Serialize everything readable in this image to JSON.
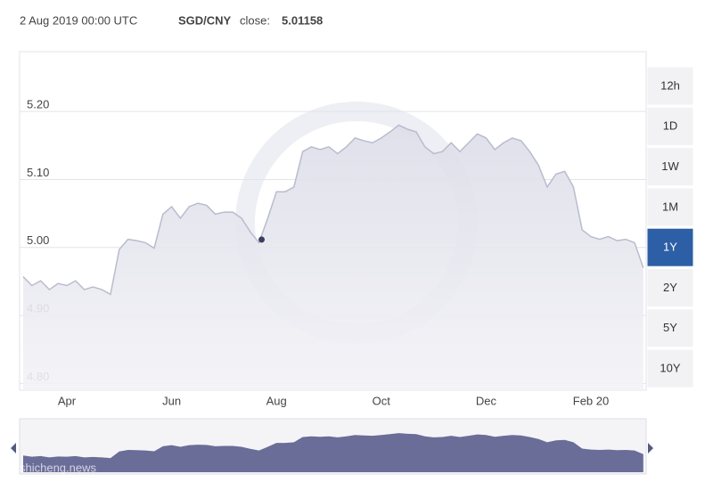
{
  "chart_data": {
    "type": "area",
    "header": {
      "date": "2 Aug 2019 00:00 UTC",
      "pair": "SGD/CNY",
      "close_label": "close:"
    },
    "close_value": 5.01158,
    "categories": [
      null,
      null,
      null,
      null,
      null,
      "Apr",
      null,
      null,
      null,
      null,
      null,
      null,
      null,
      null,
      null,
      null,
      null,
      "Jun",
      null,
      null,
      null,
      null,
      null,
      null,
      null,
      null,
      null,
      null,
      null,
      "Aug",
      null,
      null,
      null,
      null,
      null,
      null,
      null,
      null,
      null,
      null,
      null,
      "Oct",
      null,
      null,
      null,
      null,
      null,
      null,
      null,
      null,
      null,
      null,
      null,
      "Dec",
      null,
      null,
      null,
      null,
      null,
      null,
      null,
      null,
      null,
      null,
      null,
      "Feb 20",
      null,
      null,
      null,
      null,
      null,
      null
    ],
    "series": [
      {
        "name": "SGD/CNY",
        "color": "#b9bccd",
        "values": [
          4.957,
          4.944,
          4.951,
          4.938,
          4.947,
          4.944,
          4.951,
          4.938,
          4.942,
          4.938,
          4.931,
          4.997,
          5.012,
          5.01,
          5.007,
          4.999,
          5.049,
          5.06,
          5.043,
          5.06,
          5.065,
          5.062,
          5.049,
          5.052,
          5.052,
          5.043,
          5.023,
          5.007,
          5.043,
          5.082,
          5.082,
          5.089,
          5.141,
          5.148,
          5.144,
          5.148,
          5.138,
          5.148,
          5.161,
          5.157,
          5.154,
          5.161,
          5.17,
          5.18,
          5.174,
          5.17,
          5.148,
          5.138,
          5.141,
          5.154,
          5.141,
          5.154,
          5.167,
          5.161,
          5.144,
          5.154,
          5.161,
          5.157,
          5.141,
          5.121,
          5.089,
          5.108,
          5.112,
          5.089,
          5.026,
          5.016,
          5.012,
          5.016,
          5.01,
          5.012,
          5.007,
          4.97
        ]
      }
    ],
    "navigator_color": "#6a6d98",
    "ylim": [
      4.79,
      5.288
    ],
    "yticks": [
      {
        "value": 4.8,
        "label": "4.80"
      },
      {
        "value": 4.9,
        "label": "4.90"
      },
      {
        "value": 5.0,
        "label": "5.00"
      },
      {
        "value": 5.1,
        "label": "5.10"
      },
      {
        "value": 5.2,
        "label": "5.20"
      }
    ],
    "grid": true,
    "range_buttons": [
      "12h",
      "1D",
      "1W",
      "1M",
      "1Y",
      "2Y",
      "5Y",
      "10Y"
    ],
    "active_range": "1Y",
    "watermark": "shicheng.news"
  }
}
